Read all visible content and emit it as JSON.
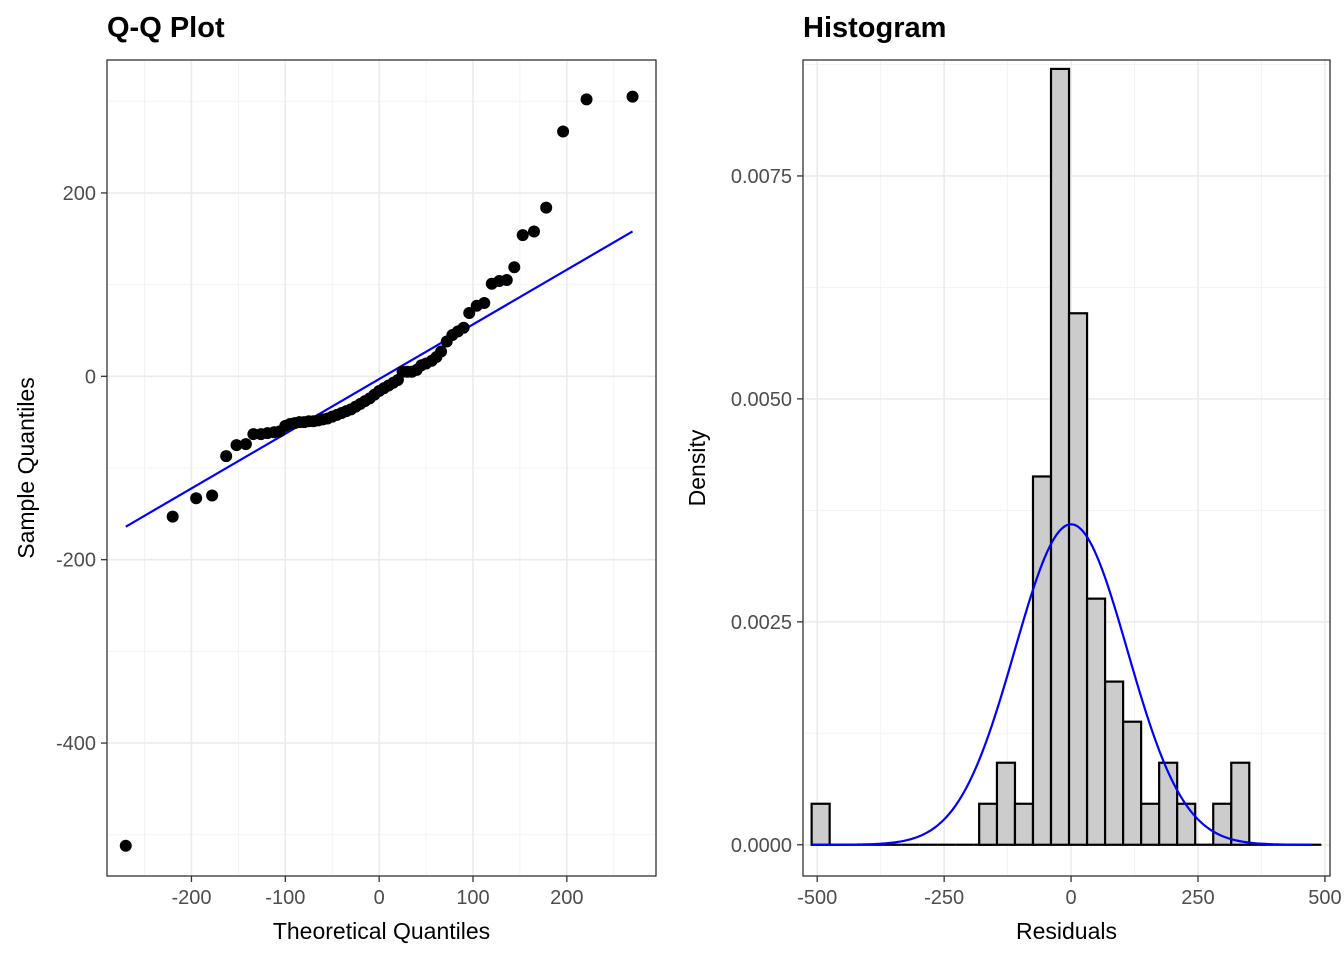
{
  "chart_data": [
    {
      "type": "scatter",
      "title": "Q-Q Plot",
      "xlabel": "Theoretical Quantiles",
      "ylabel": "Sample Quantiles",
      "xlim": [
        -290,
        295
      ],
      "ylim": [
        -545,
        345
      ],
      "xticks": [
        -200,
        -100,
        0,
        100,
        200
      ],
      "xtick_labels": [
        "-200",
        "-100",
        "0",
        "100",
        "200"
      ],
      "yticks": [
        -400,
        -200,
        0,
        200
      ],
      "ytick_labels": [
        "-400",
        "-200",
        "0",
        "200"
      ],
      "grid": true,
      "point_color": "#000000",
      "line_color": "#0000ff",
      "reference_line": {
        "x": [
          -270,
          270
        ],
        "y": [
          -164,
          158
        ]
      },
      "points": [
        {
          "x": -270,
          "y": -512
        },
        {
          "x": -220,
          "y": -153
        },
        {
          "x": -195,
          "y": -133
        },
        {
          "x": -178,
          "y": -130
        },
        {
          "x": -163,
          "y": -87
        },
        {
          "x": -152,
          "y": -75
        },
        {
          "x": -142,
          "y": -74
        },
        {
          "x": -134,
          "y": -63
        },
        {
          "x": -126,
          "y": -63
        },
        {
          "x": -119,
          "y": -62
        },
        {
          "x": -112,
          "y": -61
        },
        {
          "x": -106,
          "y": -60
        },
        {
          "x": -100,
          "y": -54
        },
        {
          "x": -95,
          "y": -52
        },
        {
          "x": -90,
          "y": -51
        },
        {
          "x": -85,
          "y": -50
        },
        {
          "x": -80,
          "y": -50
        },
        {
          "x": -75,
          "y": -49
        },
        {
          "x": -70,
          "y": -49
        },
        {
          "x": -65,
          "y": -48
        },
        {
          "x": -60,
          "y": -47
        },
        {
          "x": -55,
          "y": -46
        },
        {
          "x": -50,
          "y": -44
        },
        {
          "x": -45,
          "y": -42
        },
        {
          "x": -40,
          "y": -40
        },
        {
          "x": -35,
          "y": -38
        },
        {
          "x": -30,
          "y": -36
        },
        {
          "x": -25,
          "y": -33
        },
        {
          "x": -20,
          "y": -30
        },
        {
          "x": -15,
          "y": -27
        },
        {
          "x": -10,
          "y": -24
        },
        {
          "x": -5,
          "y": -20
        },
        {
          "x": 0,
          "y": -16
        },
        {
          "x": 5,
          "y": -13
        },
        {
          "x": 10,
          "y": -10
        },
        {
          "x": 15,
          "y": -7
        },
        {
          "x": 20,
          "y": -4
        },
        {
          "x": 25,
          "y": 5
        },
        {
          "x": 30,
          "y": 5
        },
        {
          "x": 35,
          "y": 5
        },
        {
          "x": 40,
          "y": 7
        },
        {
          "x": 45,
          "y": 12
        },
        {
          "x": 50,
          "y": 14
        },
        {
          "x": 56,
          "y": 17
        },
        {
          "x": 61,
          "y": 21
        },
        {
          "x": 66,
          "y": 27
        },
        {
          "x": 72,
          "y": 38
        },
        {
          "x": 78,
          "y": 45
        },
        {
          "x": 84,
          "y": 49
        },
        {
          "x": 90,
          "y": 53
        },
        {
          "x": 96,
          "y": 69
        },
        {
          "x": 104,
          "y": 77
        },
        {
          "x": 112,
          "y": 80
        },
        {
          "x": 120,
          "y": 101
        },
        {
          "x": 128,
          "y": 104
        },
        {
          "x": 136,
          "y": 105
        },
        {
          "x": 144,
          "y": 119
        },
        {
          "x": 153,
          "y": 154
        },
        {
          "x": 165,
          "y": 158
        },
        {
          "x": 178,
          "y": 184
        },
        {
          "x": 196,
          "y": 267
        },
        {
          "x": 221,
          "y": 302
        },
        {
          "x": 270,
          "y": 305
        }
      ]
    },
    {
      "type": "bar",
      "title": "Histogram",
      "xlabel": "Residuals",
      "ylabel": "Density",
      "xlim": [
        -528,
        510
      ],
      "ylim": [
        -0.00035,
        0.0088
      ],
      "xticks": [
        -500,
        -250,
        0,
        250,
        500
      ],
      "xtick_labels": [
        "-500",
        "-250",
        "0",
        "250",
        "500"
      ],
      "yticks": [
        0.0,
        0.0025,
        0.005,
        0.0075
      ],
      "ytick_labels": [
        "0.0000",
        "0.0025",
        "0.0050",
        "0.0075"
      ],
      "grid": true,
      "bin_width": 35.5,
      "bar_fill": "#cccccc",
      "bar_stroke": "#000000",
      "curve_color": "#0000ff",
      "bins": [
        {
          "x0": -511,
          "density": 0.00046
        },
        {
          "x0": -475.5,
          "density": 0
        },
        {
          "x0": -440,
          "density": 0
        },
        {
          "x0": -404.5,
          "density": 0
        },
        {
          "x0": -369,
          "density": 0
        },
        {
          "x0": -333.5,
          "density": 0
        },
        {
          "x0": -298,
          "density": 0
        },
        {
          "x0": -262.5,
          "density": 0
        },
        {
          "x0": -227,
          "density": 0
        },
        {
          "x0": -191.5,
          "density": 0
        },
        {
          "x0": -181,
          "density": 0.00046
        },
        {
          "x0": -146,
          "density": 0.00092
        },
        {
          "x0": -110.5,
          "density": 0.00046
        },
        {
          "x0": -75,
          "density": 0.00413
        },
        {
          "x0": -39.5,
          "density": 0.0087
        },
        {
          "x0": -4,
          "density": 0.00596
        },
        {
          "x0": 31.5,
          "density": 0.00276
        },
        {
          "x0": 67,
          "density": 0.00183
        },
        {
          "x0": 102.5,
          "density": 0.00138
        },
        {
          "x0": 138,
          "density": 0.00046
        },
        {
          "x0": 173.5,
          "density": 0.00092
        },
        {
          "x0": 209,
          "density": 0.00046
        },
        {
          "x0": 244.5,
          "density": 0
        },
        {
          "x0": 280,
          "density": 0.00046
        },
        {
          "x0": 315.5,
          "density": 0.00092
        },
        {
          "x0": 351,
          "density": 0
        },
        {
          "x0": 386.5,
          "density": 0
        },
        {
          "x0": 422,
          "density": 0
        },
        {
          "x0": 457.5,
          "density": 0
        }
      ],
      "normal_curve": {
        "mean": 0,
        "sd": 111,
        "x_from": -511,
        "x_to": 475
      }
    }
  ]
}
